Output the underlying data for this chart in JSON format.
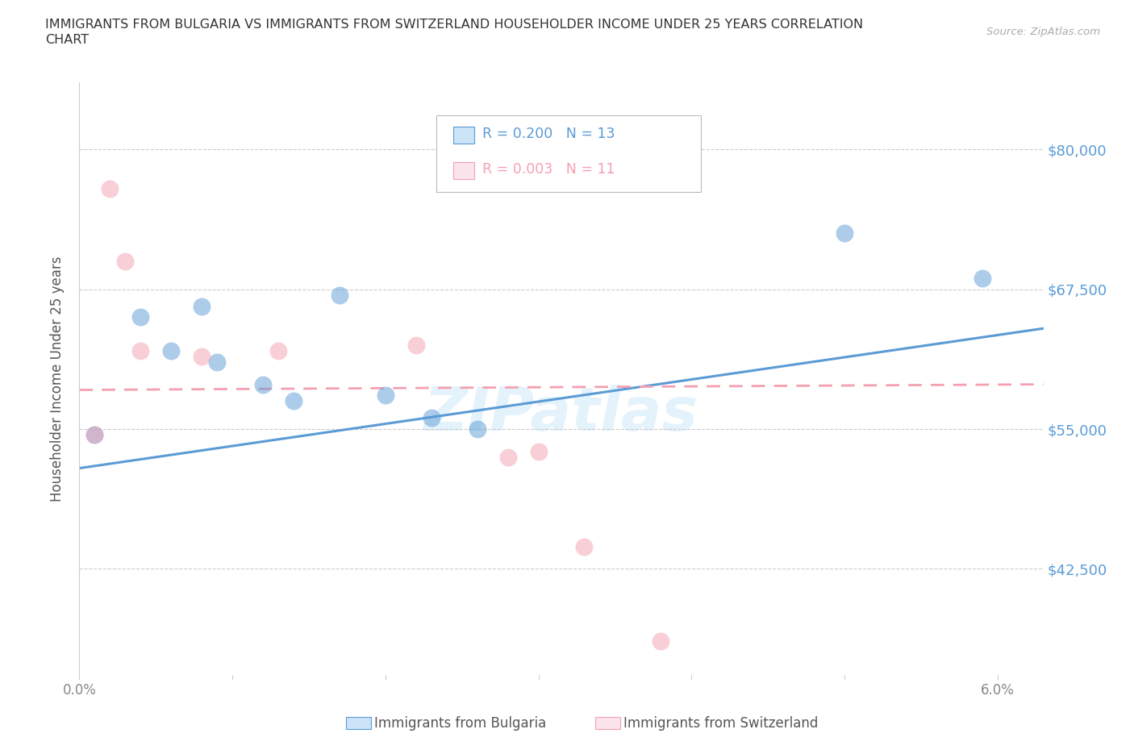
{
  "title_line1": "IMMIGRANTS FROM BULGARIA VS IMMIGRANTS FROM SWITZERLAND HOUSEHOLDER INCOME UNDER 25 YEARS CORRELATION",
  "title_line2": "CHART",
  "source": "Source: ZipAtlas.com",
  "ylabel": "Householder Income Under 25 years",
  "xlim": [
    0.0,
    0.063
  ],
  "ylim": [
    33000,
    86000
  ],
  "yticks": [
    42500,
    55000,
    67500,
    80000
  ],
  "ytick_labels": [
    "$42,500",
    "$55,000",
    "$67,500",
    "$80,000"
  ],
  "xticks": [
    0.0,
    0.01,
    0.02,
    0.03,
    0.04,
    0.05,
    0.06
  ],
  "xtick_labels": [
    "0.0%",
    "",
    "",
    "",
    "",
    "",
    "6.0%"
  ],
  "grid_color": "#cccccc",
  "watermark": "ZIPatlas",
  "bg_color": "#ffffff",
  "blue_color": "#5b9bd5",
  "pink_color": "#f4a0b0",
  "legend_blue_R": "R = 0.200",
  "legend_blue_N": "N = 13",
  "legend_pink_R": "R = 0.003",
  "legend_pink_N": "N = 11",
  "bulgaria_x": [
    0.001,
    0.004,
    0.006,
    0.008,
    0.009,
    0.012,
    0.014,
    0.017,
    0.02,
    0.023,
    0.026,
    0.05,
    0.059
  ],
  "bulgaria_y": [
    54500,
    65000,
    62000,
    66000,
    61000,
    59000,
    57500,
    67000,
    58000,
    56000,
    55000,
    72500,
    68500
  ],
  "switzerland_x": [
    0.001,
    0.002,
    0.003,
    0.004,
    0.008,
    0.013,
    0.022,
    0.028,
    0.03,
    0.033,
    0.038
  ],
  "switzerland_y": [
    54500,
    76500,
    70000,
    62000,
    61500,
    62000,
    62500,
    52500,
    53000,
    44500,
    36000
  ],
  "blue_line_x": [
    0.0,
    0.063
  ],
  "blue_line_y": [
    51500,
    64000
  ],
  "pink_line_x": [
    0.0,
    0.063
  ],
  "pink_line_y": [
    58500,
    59000
  ],
  "bottom_legend_bulgaria": "Immigrants from Bulgaria",
  "bottom_legend_switzerland": "Immigrants from Switzerland"
}
